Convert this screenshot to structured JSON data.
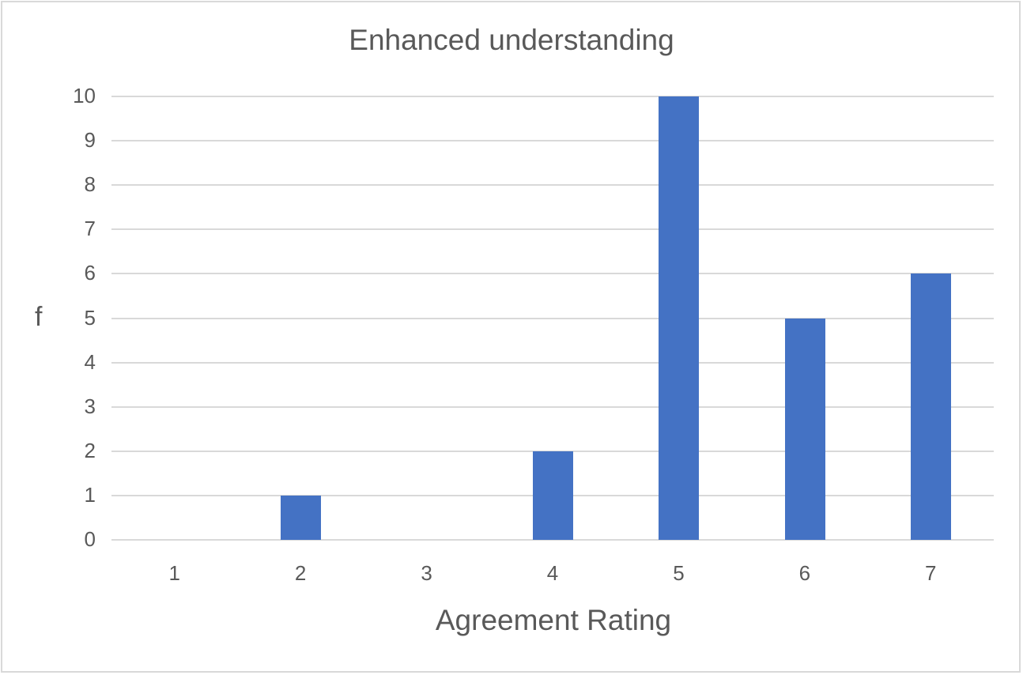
{
  "chart_data": {
    "type": "bar",
    "title": "Enhanced understanding",
    "xlabel": "Agreement Rating",
    "ylabel": "f",
    "categories": [
      "1",
      "2",
      "3",
      "4",
      "5",
      "6",
      "7"
    ],
    "values": [
      0,
      1,
      0,
      2,
      10,
      5,
      6
    ],
    "ylim": [
      0,
      10
    ],
    "yticks": [
      "0",
      "1",
      "2",
      "3",
      "4",
      "5",
      "6",
      "7",
      "8",
      "9",
      "10"
    ],
    "grid": true,
    "legend": null,
    "bar_color": "#4472c4"
  }
}
